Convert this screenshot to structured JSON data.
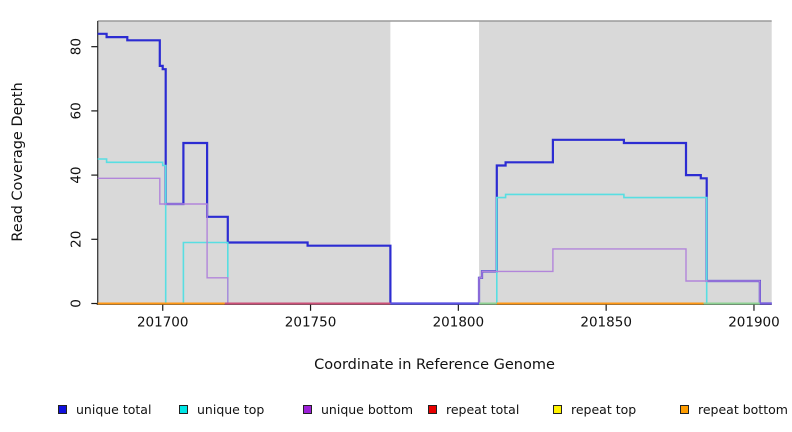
{
  "chart_data": {
    "type": "line",
    "subtype": "step-after",
    "title": "",
    "xlabel": "Coordinate in Reference Genome",
    "ylabel": "Read Coverage Depth",
    "x_range": [
      201678,
      201906
    ],
    "y_range": [
      0,
      88
    ],
    "x_ticks": [
      201700,
      201750,
      201800,
      201850,
      201900
    ],
    "y_ticks": [
      0,
      20,
      40,
      60,
      80
    ],
    "grid": false,
    "plot_background": "#d9d9d9",
    "gap_band_x": [
      201777,
      201807
    ],
    "series": [
      {
        "name": "unique total",
        "color": "#2c2cd2",
        "legend_color": "#1111dd",
        "line_width": 2.2,
        "steps": [
          [
            201678,
            84
          ],
          [
            201681,
            83
          ],
          [
            201688,
            82
          ],
          [
            201699,
            74
          ],
          [
            201700,
            73
          ],
          [
            201701,
            31
          ],
          [
            201707,
            50
          ],
          [
            201715,
            27
          ],
          [
            201722,
            19
          ],
          [
            201749,
            18
          ],
          [
            201777,
            0
          ],
          [
            201807,
            8
          ],
          [
            201808,
            10
          ],
          [
            201813,
            43
          ],
          [
            201816,
            44
          ],
          [
            201832,
            51
          ],
          [
            201856,
            50
          ],
          [
            201877,
            40
          ],
          [
            201882,
            39
          ],
          [
            201884,
            7
          ],
          [
            201902,
            0
          ],
          [
            201906,
            0
          ]
        ]
      },
      {
        "name": "unique top",
        "color": "#58dee2",
        "legend_color": "#00e5e5",
        "line_width": 1.6,
        "steps": [
          [
            201678,
            45
          ],
          [
            201681,
            44
          ],
          [
            201700,
            43
          ],
          [
            201701,
            0
          ],
          [
            201707,
            19
          ],
          [
            201722,
            0
          ],
          [
            201813,
            33
          ],
          [
            201816,
            34
          ],
          [
            201856,
            33
          ],
          [
            201884,
            0
          ],
          [
            201906,
            0
          ]
        ]
      },
      {
        "name": "unique bottom",
        "color": "#b285da",
        "legend_color": "#9d20d8",
        "line_width": 1.4,
        "steps": [
          [
            201678,
            39
          ],
          [
            201699,
            31
          ],
          [
            201715,
            8
          ],
          [
            201722,
            0
          ],
          [
            201807,
            8
          ],
          [
            201808,
            10
          ],
          [
            201832,
            17
          ],
          [
            201877,
            7
          ],
          [
            201902,
            0
          ],
          [
            201906,
            0
          ]
        ]
      },
      {
        "name": "repeat total",
        "color": "#cc5078",
        "legend_color": "#e80000",
        "line_width": 2,
        "steps": [
          [
            201678,
            0
          ],
          [
            201777,
            0
          ]
        ]
      },
      {
        "name": "repeat top",
        "color": "#8ed193",
        "legend_color": "#fff200",
        "line_width": 2,
        "steps": [
          [
            201807,
            0
          ],
          [
            201902,
            0
          ]
        ]
      },
      {
        "name": "repeat bottom",
        "color": "#ff9815",
        "legend_color": "#ff9d00",
        "line_width": 2,
        "steps": [
          [
            201678,
            0
          ],
          [
            201721,
            0
          ],
          [
            201813,
            0
          ],
          [
            201883,
            0
          ]
        ]
      }
    ],
    "baseline_segments": [
      {
        "x": [
          201678,
          201721
        ],
        "color": "#ff9815"
      },
      {
        "x": [
          201721,
          201777
        ],
        "color": "#cc5078"
      },
      {
        "x": [
          201777,
          201807
        ],
        "color": "#5c53e6"
      },
      {
        "x": [
          201807,
          201813
        ],
        "color": "#8ed193"
      },
      {
        "x": [
          201813,
          201883
        ],
        "color": "#ff9815"
      },
      {
        "x": [
          201883,
          201902
        ],
        "color": "#8ed193"
      },
      {
        "x": [
          201902,
          201906
        ],
        "color": "#7a5fe0"
      }
    ],
    "legend": {
      "position": "bottom",
      "items": [
        "unique total",
        "unique top",
        "unique bottom",
        "repeat total",
        "repeat top",
        "repeat bottom"
      ]
    }
  }
}
